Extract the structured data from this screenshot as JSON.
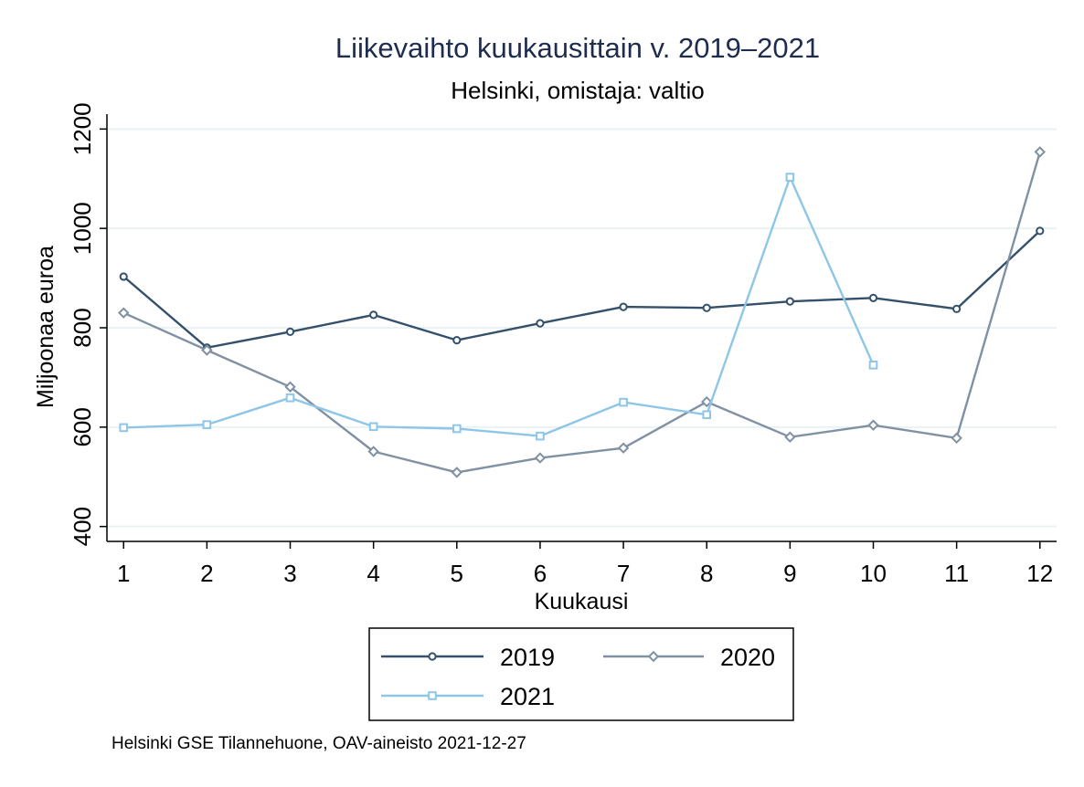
{
  "chart_data": {
    "type": "line",
    "title": "Liikevaihto kuukausittain v. 2019–2021",
    "subtitle": "Helsinki, omistaja: valtio",
    "xlabel": "Kuukausi",
    "ylabel": "Miljoonaa euroa",
    "x": [
      1,
      2,
      3,
      4,
      5,
      6,
      7,
      8,
      9,
      10,
      11,
      12
    ],
    "xticks": [
      "1",
      "2",
      "3",
      "4",
      "5",
      "6",
      "7",
      "8",
      "9",
      "10",
      "11",
      "12"
    ],
    "yticks": [
      "400",
      "600",
      "800",
      "1000",
      "1200"
    ],
    "ylim": [
      370,
      1230
    ],
    "xlim": [
      0.8,
      12.2
    ],
    "grid": true,
    "legend_position": "bottom",
    "series": [
      {
        "name": "2019",
        "marker": "circle",
        "color": "#34506a",
        "values": [
          903,
          760,
          792,
          826,
          775,
          809,
          842,
          840,
          853,
          860,
          838,
          995
        ]
      },
      {
        "name": "2020",
        "marker": "diamond",
        "color": "#7f91a3",
        "values": [
          830,
          755,
          681,
          551,
          509,
          538,
          558,
          651,
          580,
          604,
          578,
          1154
        ]
      },
      {
        "name": "2021",
        "marker": "square",
        "color": "#8ec6e8",
        "values": [
          599,
          605,
          659,
          601,
          597,
          582,
          650,
          625,
          1103,
          725,
          null,
          null
        ]
      }
    ],
    "note": "Helsinki GSE Tilannehuone, OAV-aineisto 2021-12-27"
  }
}
